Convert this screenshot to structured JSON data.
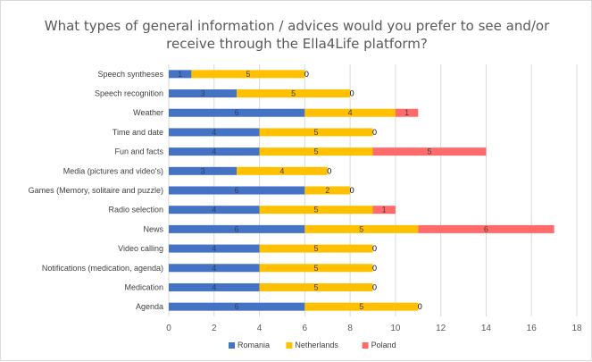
{
  "chart_data": {
    "type": "bar",
    "orientation": "horizontal",
    "stacked": true,
    "title_lines": [
      "What types of general information / advices would you prefer to see and/or",
      "receive through the Ella4Life platform?"
    ],
    "categories": [
      "Speech syntheses",
      "Speech recognition",
      "Weather",
      "Time and date",
      "Fun and facts",
      "Media (pictures and video's)",
      "Games (Memory, solitaire and puzzle)",
      "Radio selection",
      "News",
      "Video calling",
      "Notifications (medication, agenda)",
      "Medication",
      "Agenda"
    ],
    "series": [
      {
        "name": "Romania",
        "color": "#4472c4",
        "values": [
          1,
          3,
          6,
          4,
          4,
          3,
          6,
          4,
          6,
          4,
          4,
          4,
          6
        ]
      },
      {
        "name": "Netherlands",
        "color": "#ffc000",
        "values": [
          5,
          5,
          4,
          5,
          5,
          4,
          2,
          5,
          5,
          5,
          5,
          5,
          5
        ]
      },
      {
        "name": "Poland",
        "color": "#ff6b6b",
        "values": [
          0,
          0,
          1,
          0,
          5,
          0,
          0,
          1,
          6,
          0,
          0,
          0,
          0
        ]
      }
    ],
    "xlim": [
      0,
      18
    ],
    "xticks": [
      0,
      2,
      4,
      6,
      8,
      10,
      12,
      14,
      16,
      18
    ],
    "grid": "vertical",
    "legend": "bottom",
    "data_labels": true
  }
}
